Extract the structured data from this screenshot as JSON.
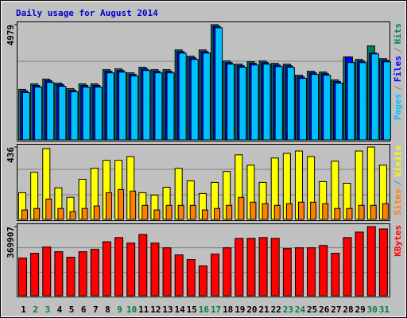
{
  "chart_data": {
    "type": "bar",
    "title": "Daily usage for August 2014",
    "title_color": "#0000cc",
    "background": "#c0c0c0",
    "categories": [
      "1",
      "2",
      "3",
      "4",
      "5",
      "6",
      "7",
      "8",
      "9",
      "10",
      "11",
      "12",
      "13",
      "14",
      "15",
      "16",
      "17",
      "18",
      "19",
      "20",
      "21",
      "22",
      "23",
      "24",
      "25",
      "26",
      "27",
      "28",
      "29",
      "30",
      "31"
    ],
    "category_colors": [
      "#000000",
      "#007f3f",
      "#007f3f",
      "#000000",
      "#000000",
      "#000000",
      "#000000",
      "#000000",
      "#007f3f",
      "#007f3f",
      "#000000",
      "#000000",
      "#000000",
      "#000000",
      "#000000",
      "#007f3f",
      "#007f3f",
      "#000000",
      "#000000",
      "#000000",
      "#000000",
      "#000000",
      "#007f3f",
      "#007f3f",
      "#000000",
      "#000000",
      "#000000",
      "#000000",
      "#000000",
      "#007f3f",
      "#007f3f"
    ],
    "panels": [
      {
        "ylim": [
          0,
          4979
        ],
        "yticks": [
          4979
        ],
        "label_separator": "/",
        "series": [
          {
            "name": "Hits",
            "color": "#00805c",
            "values": [
              2182,
              2421,
              2626,
              2455,
              2217,
              2421,
              2421,
              3035,
              3069,
              2899,
              3137,
              3035,
              3035,
              3887,
              3615,
              3887,
              4979,
              3410,
              3274,
              3376,
              3410,
              3308,
              3274,
              2796,
              2967,
              2933,
              2592,
              3581,
              3478,
              4058,
              3512
            ]
          },
          {
            "name": "Files",
            "color": "#0000ff",
            "values": [
              2112,
              2351,
              2556,
              2385,
              2147,
              2351,
              2351,
              2965,
              2999,
              2829,
              3067,
              2965,
              2965,
              3817,
              3545,
              3817,
              4909,
              3340,
              3204,
              3306,
              3340,
              3238,
              3204,
              2726,
              2897,
              2863,
              2522,
              3581,
              3408,
              3750,
              3442
            ]
          },
          {
            "name": "Pages",
            "color": "#00c0ff",
            "values": [
              2042,
              2281,
              2486,
              2315,
              2077,
              2281,
              2281,
              2895,
              2929,
              2759,
              2997,
              2895,
              2895,
              3747,
              3475,
              3747,
              4842,
              3270,
              3134,
              3236,
              3270,
              3168,
              3134,
              2656,
              2827,
              2793,
              2452,
              3342,
              3338,
              3717,
              3372
            ]
          }
        ]
      },
      {
        "ylim": [
          0,
          436
        ],
        "yticks": [
          436
        ],
        "label_separator": "/",
        "series": [
          {
            "name": "Visits",
            "color": "#ffff00",
            "values": [
              161,
              284,
              427,
              190,
              133,
              242,
              308,
              356,
              356,
              379,
              161,
              147,
              194,
              308,
              232,
              156,
              223,
              289,
              389,
              327,
              223,
              370,
              398,
              412,
              379,
              228,
              351,
              218,
              412,
              436,
              327
            ]
          },
          {
            "name": "Sites",
            "color": "#ff8000",
            "values": [
              57,
              66,
              123,
              66,
              47,
              66,
              81,
              161,
              180,
              171,
              85,
              57,
              85,
              85,
              85,
              57,
              66,
              85,
              133,
              104,
              95,
              85,
              95,
              104,
              104,
              95,
              66,
              66,
              85,
              85,
              95
            ]
          }
        ]
      },
      {
        "ylim": [
          0,
          369907
        ],
        "yticks": [
          369907
        ],
        "label_separator": "/",
        "series": [
          {
            "name": "KBytes",
            "color": "#ff0000",
            "values": [
              201744,
              226962,
              260586,
              235368,
              205947,
              235368,
              247977,
              289007,
              311022,
              281601,
              327834,
              281601,
              256383,
              218556,
              193338,
              159714,
              222759,
              256383,
              306819,
              306819,
              311022,
              306819,
              252180,
              256383,
              256383,
              268992,
              226962,
              311022,
              340443,
              369907,
              357255
            ]
          }
        ]
      }
    ]
  }
}
